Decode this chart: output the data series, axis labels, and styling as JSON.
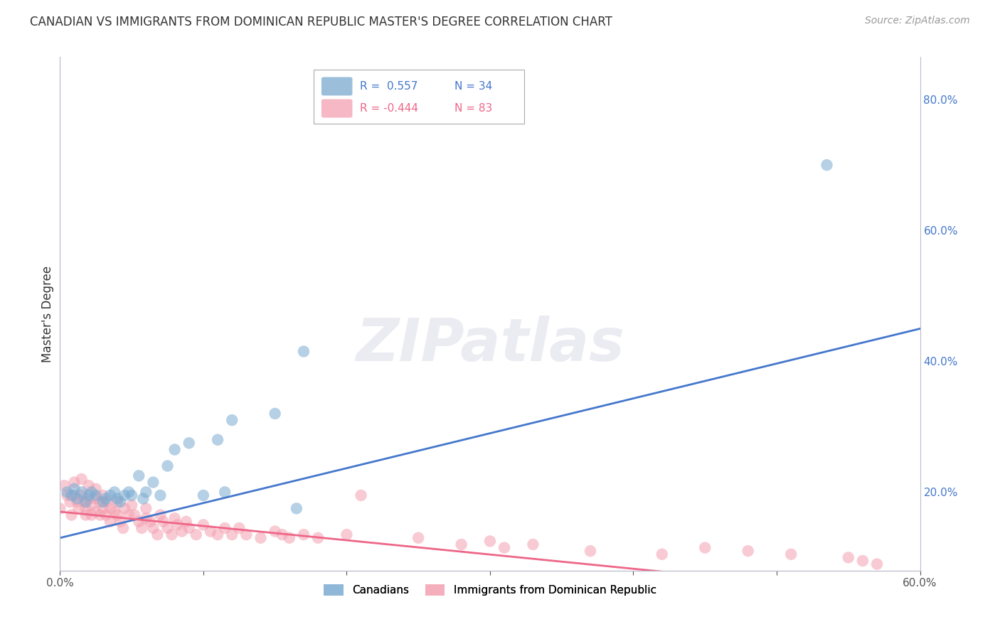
{
  "title": "CANADIAN VS IMMIGRANTS FROM DOMINICAN REPUBLIC MASTER'S DEGREE CORRELATION CHART",
  "source": "Source: ZipAtlas.com",
  "ylabel": "Master's Degree",
  "xlim": [
    0.0,
    0.6
  ],
  "ylim": [
    0.08,
    0.865
  ],
  "y_ticks": [
    0.2,
    0.4,
    0.6,
    0.8
  ],
  "y_tick_labels": [
    "20.0%",
    "40.0%",
    "60.0%",
    "80.0%"
  ],
  "x_tick_labels_show": [
    "0.0%",
    "60.0%"
  ],
  "x_ticks_show": [
    0.0,
    0.6
  ],
  "canadians_color": "#7AAAD0",
  "dominican_color": "#F4A0B0",
  "blue_line_color": "#4477CC",
  "pink_line_color": "#EE6688",
  "R_canadian": 0.557,
  "N_canadian": 34,
  "R_dominican": -0.444,
  "N_dominican": 83,
  "watermark": "ZIPatlas",
  "background_color": "#FFFFFF",
  "grid_color": "#DDDDEE",
  "title_fontsize": 12,
  "tick_fontsize": 11,
  "source_fontsize": 10,
  "canadians_x": [
    0.005,
    0.008,
    0.01,
    0.012,
    0.015,
    0.018,
    0.02,
    0.022,
    0.025,
    0.03,
    0.032,
    0.035,
    0.038,
    0.04,
    0.042,
    0.045,
    0.048,
    0.05,
    0.055,
    0.058,
    0.06,
    0.065,
    0.07,
    0.075,
    0.08,
    0.09,
    0.1,
    0.11,
    0.115,
    0.12,
    0.15,
    0.165,
    0.17,
    0.535
  ],
  "canadians_y": [
    0.2,
    0.195,
    0.205,
    0.19,
    0.2,
    0.185,
    0.195,
    0.2,
    0.195,
    0.185,
    0.19,
    0.195,
    0.2,
    0.19,
    0.185,
    0.195,
    0.2,
    0.195,
    0.225,
    0.19,
    0.2,
    0.215,
    0.195,
    0.24,
    0.265,
    0.275,
    0.195,
    0.28,
    0.2,
    0.31,
    0.32,
    0.175,
    0.415,
    0.7
  ],
  "dominican_x": [
    0.0,
    0.003,
    0.005,
    0.007,
    0.008,
    0.01,
    0.01,
    0.012,
    0.013,
    0.015,
    0.015,
    0.017,
    0.018,
    0.018,
    0.02,
    0.02,
    0.022,
    0.022,
    0.025,
    0.025,
    0.025,
    0.028,
    0.028,
    0.03,
    0.03,
    0.032,
    0.033,
    0.035,
    0.035,
    0.038,
    0.04,
    0.04,
    0.042,
    0.044,
    0.045,
    0.048,
    0.05,
    0.052,
    0.055,
    0.057,
    0.06,
    0.06,
    0.063,
    0.065,
    0.068,
    0.07,
    0.072,
    0.075,
    0.078,
    0.08,
    0.082,
    0.085,
    0.088,
    0.09,
    0.095,
    0.1,
    0.105,
    0.11,
    0.115,
    0.12,
    0.125,
    0.13,
    0.14,
    0.15,
    0.155,
    0.16,
    0.17,
    0.18,
    0.2,
    0.21,
    0.25,
    0.28,
    0.3,
    0.31,
    0.33,
    0.37,
    0.42,
    0.45,
    0.48,
    0.51,
    0.55,
    0.56,
    0.57
  ],
  "dominican_y": [
    0.175,
    0.21,
    0.195,
    0.185,
    0.165,
    0.215,
    0.195,
    0.185,
    0.175,
    0.22,
    0.195,
    0.185,
    0.175,
    0.165,
    0.21,
    0.19,
    0.18,
    0.165,
    0.205,
    0.19,
    0.17,
    0.185,
    0.165,
    0.195,
    0.175,
    0.165,
    0.185,
    0.175,
    0.155,
    0.17,
    0.185,
    0.165,
    0.155,
    0.145,
    0.175,
    0.165,
    0.18,
    0.165,
    0.155,
    0.145,
    0.175,
    0.16,
    0.155,
    0.145,
    0.135,
    0.165,
    0.155,
    0.145,
    0.135,
    0.16,
    0.15,
    0.14,
    0.155,
    0.145,
    0.135,
    0.15,
    0.14,
    0.135,
    0.145,
    0.135,
    0.145,
    0.135,
    0.13,
    0.14,
    0.135,
    0.13,
    0.135,
    0.13,
    0.135,
    0.195,
    0.13,
    0.12,
    0.125,
    0.115,
    0.12,
    0.11,
    0.105,
    0.115,
    0.11,
    0.105,
    0.1,
    0.095,
    0.09
  ]
}
